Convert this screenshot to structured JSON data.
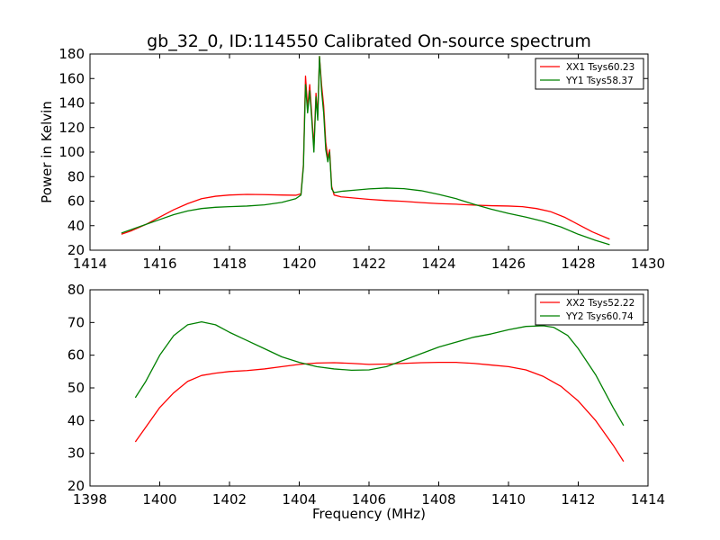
{
  "chart_data": [
    {
      "type": "line",
      "title": "gb_32_0, ID:114550 Calibrated On-source spectrum",
      "xlabel": "",
      "ylabel": "Power in Kelvin",
      "xlim": [
        1414,
        1430
      ],
      "ylim": [
        20,
        180
      ],
      "xticks": [
        "1414",
        "1416",
        "1418",
        "1420",
        "1422",
        "1424",
        "1426",
        "1428",
        "1430"
      ],
      "yticks": [
        "20",
        "40",
        "60",
        "80",
        "100",
        "120",
        "140",
        "160",
        "180"
      ],
      "grid": false,
      "legend_position": "top-right",
      "series": [
        {
          "name": "XX1 Tsys60.23",
          "color": "#ff0000",
          "points": [
            [
              1414.9,
              33
            ],
            [
              1415.2,
              36
            ],
            [
              1415.6,
              41
            ],
            [
              1416.0,
              47
            ],
            [
              1416.4,
              53
            ],
            [
              1416.8,
              58
            ],
            [
              1417.2,
              62
            ],
            [
              1417.6,
              64
            ],
            [
              1418.0,
              65
            ],
            [
              1418.5,
              65.5
            ],
            [
              1419.0,
              65.3
            ],
            [
              1419.5,
              65
            ],
            [
              1419.9,
              64.8
            ],
            [
              1420.05,
              66
            ],
            [
              1420.12,
              90
            ],
            [
              1420.18,
              162
            ],
            [
              1420.24,
              136
            ],
            [
              1420.3,
              155
            ],
            [
              1420.36,
              130
            ],
            [
              1420.42,
              104
            ],
            [
              1420.48,
              148
            ],
            [
              1420.53,
              130
            ],
            [
              1420.58,
              178
            ],
            [
              1420.64,
              155
            ],
            [
              1420.7,
              138
            ],
            [
              1420.76,
              108
            ],
            [
              1420.82,
              95
            ],
            [
              1420.87,
              102
            ],
            [
              1420.93,
              72
            ],
            [
              1421.0,
              65
            ],
            [
              1421.2,
              63.5
            ],
            [
              1421.6,
              62.5
            ],
            [
              1422.0,
              61.5
            ],
            [
              1422.5,
              60.5
            ],
            [
              1423.0,
              59.8
            ],
            [
              1423.5,
              58.8
            ],
            [
              1424.0,
              58
            ],
            [
              1424.5,
              57.5
            ],
            [
              1425.0,
              56.8
            ],
            [
              1425.5,
              56.3
            ],
            [
              1426.0,
              56
            ],
            [
              1426.4,
              55.5
            ],
            [
              1426.8,
              54
            ],
            [
              1427.2,
              51.5
            ],
            [
              1427.6,
              47
            ],
            [
              1428.0,
              41
            ],
            [
              1428.4,
              35
            ],
            [
              1428.9,
              29
            ]
          ]
        },
        {
          "name": "YY1 Tsys58.37",
          "color": "#008000",
          "points": [
            [
              1414.9,
              34
            ],
            [
              1415.2,
              37
            ],
            [
              1415.6,
              41
            ],
            [
              1416.0,
              45
            ],
            [
              1416.4,
              49
            ],
            [
              1416.8,
              52
            ],
            [
              1417.2,
              54
            ],
            [
              1417.6,
              55
            ],
            [
              1418.0,
              55.5
            ],
            [
              1418.5,
              56
            ],
            [
              1419.0,
              57
            ],
            [
              1419.5,
              59
            ],
            [
              1419.9,
              62
            ],
            [
              1420.05,
              65
            ],
            [
              1420.12,
              88
            ],
            [
              1420.18,
              155
            ],
            [
              1420.24,
              132
            ],
            [
              1420.3,
              150
            ],
            [
              1420.36,
              126
            ],
            [
              1420.42,
              100
            ],
            [
              1420.48,
              145
            ],
            [
              1420.53,
              126
            ],
            [
              1420.58,
              178
            ],
            [
              1420.64,
              150
            ],
            [
              1420.7,
              132
            ],
            [
              1420.76,
              102
            ],
            [
              1420.82,
              92
            ],
            [
              1420.87,
              100
            ],
            [
              1420.93,
              70
            ],
            [
              1421.0,
              67
            ],
            [
              1421.2,
              68
            ],
            [
              1421.6,
              69
            ],
            [
              1422.0,
              70
            ],
            [
              1422.5,
              70.7
            ],
            [
              1423.0,
              70.2
            ],
            [
              1423.5,
              68.5
            ],
            [
              1424.0,
              65.5
            ],
            [
              1424.5,
              62
            ],
            [
              1425.0,
              57.5
            ],
            [
              1425.5,
              53.5
            ],
            [
              1426.0,
              50
            ],
            [
              1426.5,
              47
            ],
            [
              1427.0,
              43.5
            ],
            [
              1427.5,
              39
            ],
            [
              1428.0,
              33
            ],
            [
              1428.5,
              28
            ],
            [
              1428.9,
              24.5
            ]
          ]
        }
      ]
    },
    {
      "type": "line",
      "title": "",
      "xlabel": "Frequency (MHz)",
      "ylabel": "",
      "xlim": [
        1398,
        1414
      ],
      "ylim": [
        20,
        80
      ],
      "xticks": [
        "1398",
        "1400",
        "1402",
        "1404",
        "1406",
        "1408",
        "1410",
        "1412",
        "1414"
      ],
      "yticks": [
        "20",
        "30",
        "40",
        "50",
        "60",
        "70",
        "80"
      ],
      "grid": false,
      "legend_position": "top-right",
      "series": [
        {
          "name": "XX2 Tsys52.22",
          "color": "#ff0000",
          "points": [
            [
              1399.3,
              33.5
            ],
            [
              1399.6,
              38
            ],
            [
              1400.0,
              44
            ],
            [
              1400.4,
              48.5
            ],
            [
              1400.8,
              52
            ],
            [
              1401.2,
              53.8
            ],
            [
              1401.6,
              54.5
            ],
            [
              1402.0,
              55
            ],
            [
              1402.5,
              55.3
            ],
            [
              1403.0,
              55.8
            ],
            [
              1403.5,
              56.5
            ],
            [
              1404.0,
              57.2
            ],
            [
              1404.5,
              57.6
            ],
            [
              1405.0,
              57.7
            ],
            [
              1405.5,
              57.5
            ],
            [
              1406.0,
              57.2
            ],
            [
              1406.5,
              57.3
            ],
            [
              1407.0,
              57.5
            ],
            [
              1407.5,
              57.7
            ],
            [
              1408.0,
              57.8
            ],
            [
              1408.5,
              57.8
            ],
            [
              1409.0,
              57.5
            ],
            [
              1409.5,
              57
            ],
            [
              1410.0,
              56.5
            ],
            [
              1410.5,
              55.5
            ],
            [
              1411.0,
              53.5
            ],
            [
              1411.5,
              50.5
            ],
            [
              1412.0,
              46
            ],
            [
              1412.5,
              40
            ],
            [
              1413.0,
              32.5
            ],
            [
              1413.3,
              27.5
            ]
          ]
        },
        {
          "name": "YY2 Tsys60.74",
          "color": "#008000",
          "points": [
            [
              1399.3,
              47
            ],
            [
              1399.6,
              52
            ],
            [
              1400.0,
              60
            ],
            [
              1400.4,
              66
            ],
            [
              1400.8,
              69.3
            ],
            [
              1401.2,
              70.2
            ],
            [
              1401.6,
              69.3
            ],
            [
              1402.0,
              67
            ],
            [
              1402.5,
              64.5
            ],
            [
              1403.0,
              62
            ],
            [
              1403.5,
              59.5
            ],
            [
              1404.0,
              57.8
            ],
            [
              1404.5,
              56.5
            ],
            [
              1405.0,
              55.8
            ],
            [
              1405.5,
              55.4
            ],
            [
              1406.0,
              55.5
            ],
            [
              1406.5,
              56.5
            ],
            [
              1407.0,
              58.5
            ],
            [
              1407.5,
              60.5
            ],
            [
              1408.0,
              62.5
            ],
            [
              1408.5,
              64
            ],
            [
              1409.0,
              65.5
            ],
            [
              1409.5,
              66.5
            ],
            [
              1410.0,
              67.8
            ],
            [
              1410.5,
              68.8
            ],
            [
              1411.0,
              69
            ],
            [
              1411.3,
              68.5
            ],
            [
              1411.7,
              66
            ],
            [
              1412.0,
              62
            ],
            [
              1412.5,
              54
            ],
            [
              1413.0,
              44
            ],
            [
              1413.3,
              38.5
            ]
          ]
        }
      ]
    }
  ]
}
